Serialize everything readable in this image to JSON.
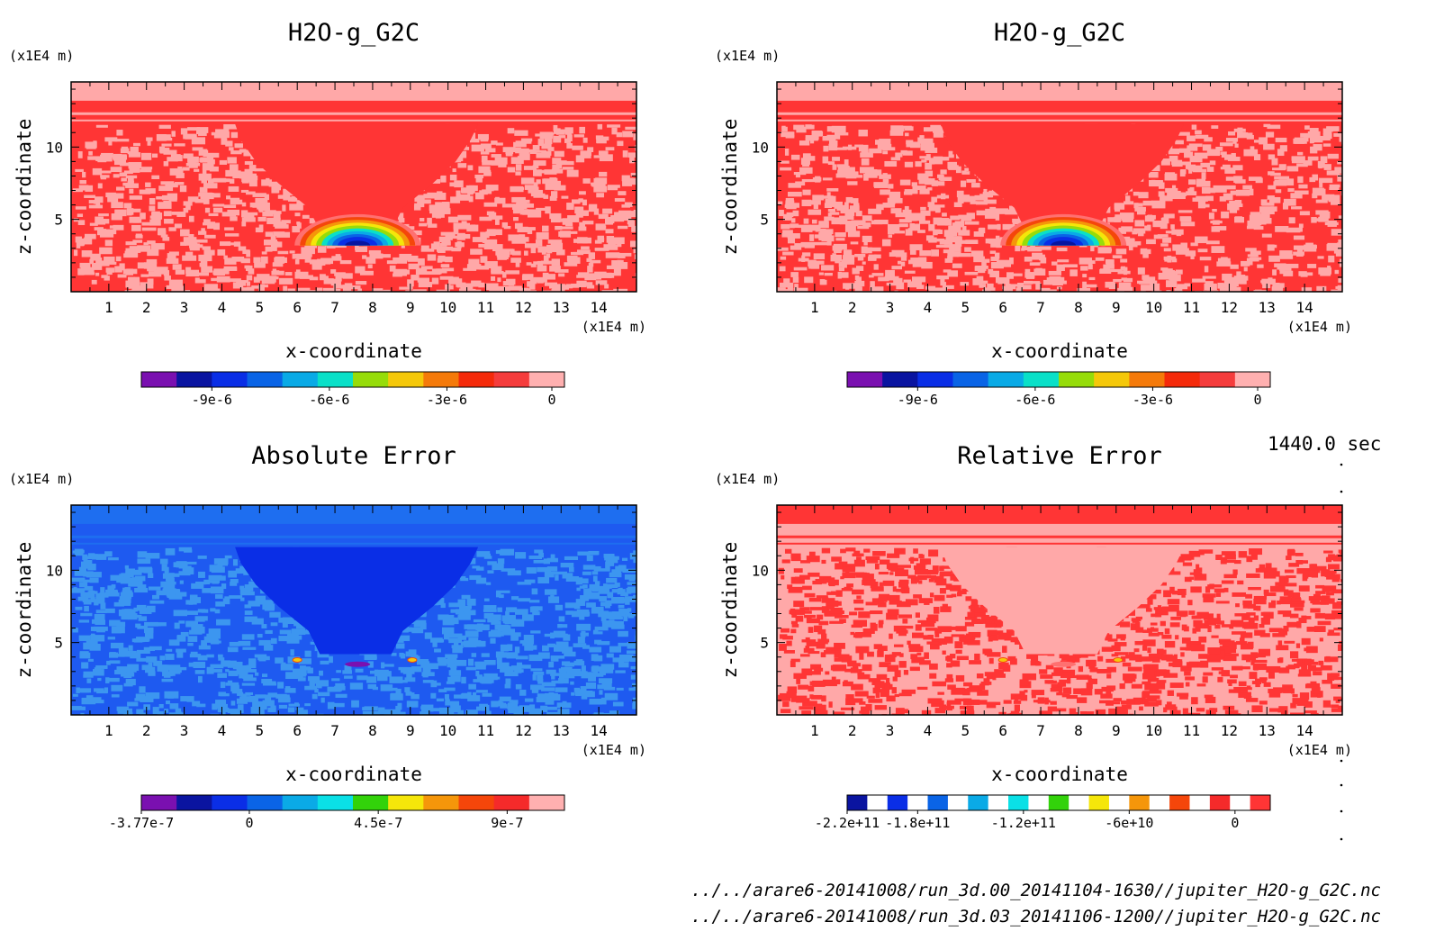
{
  "time_label": "1440.0 sec",
  "file_lines": [
    "../../arare6-20141008/run_3d.00_20141104-1630//jupiter_H2O-g_G2C.nc",
    "../../arare6-20141008/run_3d.03_20141106-1200//jupiter_H2O-g_G2C.nc"
  ],
  "chart_data": [
    {
      "type": "heatmap",
      "title": "H2O-g_G2C",
      "xlabel": "x-coordinate",
      "ylabel": "z-coordinate",
      "x_unit": "(x1E4 m)",
      "y_unit": "(x1E4 m)",
      "xlim": [
        0,
        15
      ],
      "ylim": [
        0,
        14.5
      ],
      "xticks": [
        1,
        2,
        3,
        4,
        5,
        6,
        7,
        8,
        9,
        10,
        11,
        12,
        13,
        14
      ],
      "yticks": [
        5,
        10
      ],
      "colorbar": {
        "colors": [
          "#7a10b0",
          "#0a14a0",
          "#0a2ee6",
          "#0a64e6",
          "#0aaae6",
          "#0ae0c8",
          "#96dc0a",
          "#f5c80a",
          "#f57a0a",
          "#f52a0a",
          "#f53c3c",
          "#ffb0b0"
        ],
        "ticks": [
          {
            "value": -9e-06,
            "label": "-9e-6"
          },
          {
            "value": -6e-06,
            "label": "-6e-6"
          },
          {
            "value": -3e-06,
            "label": "-3e-6"
          },
          {
            "value": 0,
            "label": "0"
          }
        ],
        "range": [
          -1.08e-05,
          0
        ]
      },
      "field": {
        "base": "#ff3535",
        "speckle": "#ffa8a8",
        "plume": "#ff3535",
        "top_band": "#ffa8a8",
        "has_cloud": true
      }
    },
    {
      "type": "heatmap",
      "title": "H2O-g_G2C",
      "xlabel": "x-coordinate",
      "ylabel": "z-coordinate",
      "x_unit": "(x1E4 m)",
      "y_unit": "(x1E4 m)",
      "xlim": [
        0,
        15
      ],
      "ylim": [
        0,
        14.5
      ],
      "xticks": [
        1,
        2,
        3,
        4,
        5,
        6,
        7,
        8,
        9,
        10,
        11,
        12,
        13,
        14
      ],
      "yticks": [
        5,
        10
      ],
      "colorbar": {
        "colors": [
          "#7a10b0",
          "#0a14a0",
          "#0a2ee6",
          "#0a64e6",
          "#0aaae6",
          "#0ae0c8",
          "#96dc0a",
          "#f5c80a",
          "#f57a0a",
          "#f52a0a",
          "#f53c3c",
          "#ffb0b0"
        ],
        "ticks": [
          {
            "value": -9e-06,
            "label": "-9e-6"
          },
          {
            "value": -6e-06,
            "label": "-6e-6"
          },
          {
            "value": -3e-06,
            "label": "-3e-6"
          },
          {
            "value": 0,
            "label": "0"
          }
        ],
        "range": [
          -1.08e-05,
          0
        ]
      },
      "field": {
        "base": "#ff3535",
        "speckle": "#ffa8a8",
        "plume": "#ff3535",
        "top_band": "#ffa8a8",
        "has_cloud": true
      }
    },
    {
      "type": "heatmap",
      "title": "Absolute Error",
      "xlabel": "x-coordinate",
      "ylabel": "z-coordinate",
      "x_unit": "(x1E4 m)",
      "y_unit": "(x1E4 m)",
      "xlim": [
        0,
        15
      ],
      "ylim": [
        0,
        14.5
      ],
      "xticks": [
        1,
        2,
        3,
        4,
        5,
        6,
        7,
        8,
        9,
        10,
        11,
        12,
        13,
        14
      ],
      "yticks": [
        5,
        10
      ],
      "colorbar": {
        "colors": [
          "#7a10b0",
          "#0a14a0",
          "#0a2ee6",
          "#0a64e6",
          "#0aaae6",
          "#0ae0e6",
          "#32d20a",
          "#f5e60a",
          "#f5960a",
          "#f5460a",
          "#f52a2a",
          "#ffb0b0"
        ],
        "ticks": [
          {
            "value": -3.77e-07,
            "label": "-3.77e-7"
          },
          {
            "value": 0,
            "label": "0"
          },
          {
            "value": 4.5e-07,
            "label": "4.5e-7"
          },
          {
            "value": 9e-07,
            "label": "9e-7"
          }
        ],
        "range": [
          -3.77e-07,
          1.1e-06
        ]
      },
      "field": {
        "base": "#1e5af0",
        "speckle": "#3c96f0",
        "plume": "#0a2ee6",
        "top_band": "#1e6ef0",
        "has_cloud": false
      }
    },
    {
      "type": "heatmap",
      "title": "Relative Error",
      "xlabel": "x-coordinate",
      "ylabel": "z-coordinate",
      "x_unit": "(x1E4 m)",
      "y_unit": "(x1E4 m)",
      "xlim": [
        0,
        15
      ],
      "ylim": [
        0,
        14.5
      ],
      "xticks": [
        1,
        2,
        3,
        4,
        5,
        6,
        7,
        8,
        9,
        10,
        11,
        12,
        13,
        14
      ],
      "yticks": [
        5,
        10
      ],
      "colorbar": {
        "colors": [
          "#0a14a0",
          "#ffffff",
          "#0a2ee6",
          "#ffffff",
          "#0a64e6",
          "#ffffff",
          "#0aaae6",
          "#ffffff",
          "#0ae0e6",
          "#ffffff",
          "#32d20a",
          "#ffffff",
          "#f5e60a",
          "#ffffff",
          "#f5960a",
          "#ffffff",
          "#f5460a",
          "#ffffff",
          "#f52a2a",
          "#ffffff",
          "#ff3535"
        ],
        "ticks": [
          {
            "value": -220000000000.0,
            "label": "-2.2e+11"
          },
          {
            "value": -180000000000.0,
            "label": "-1.8e+11"
          },
          {
            "value": -120000000000.0,
            "label": "-1.2e+11"
          },
          {
            "value": -60000000000.0,
            "label": "-6e+10"
          },
          {
            "value": 0,
            "label": "0"
          }
        ],
        "range": [
          -220000000000.0,
          20000000000.0
        ]
      },
      "field": {
        "base": "#ffa8a8",
        "speckle": "#ff3535",
        "plume": "#ffa8a8",
        "top_band": "#ff3535",
        "has_cloud": false
      }
    }
  ]
}
